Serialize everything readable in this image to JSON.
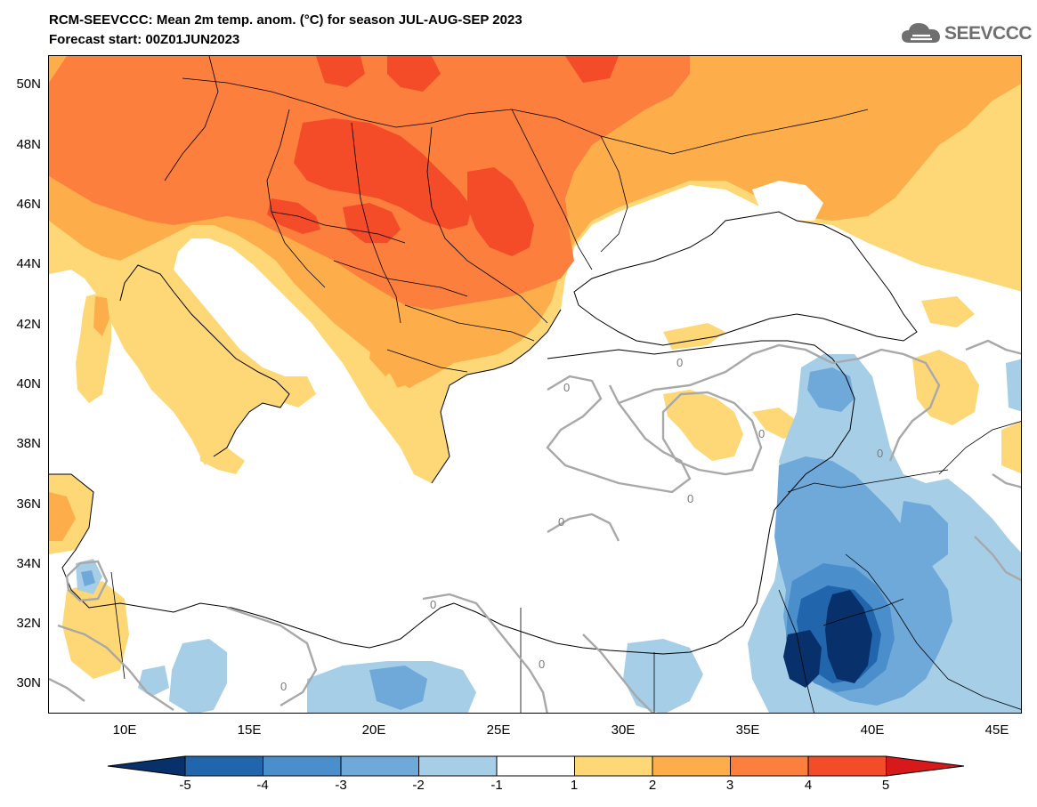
{
  "header": {
    "title": "RCM-SEEVCCC: Mean 2m temp. anom. (°C) for season JUL-AUG-SEP 2023",
    "subtitle": "Forecast start: 00Z01JUN2023"
  },
  "logo": {
    "text": "SEEVCCC",
    "icon": "cloud-icon"
  },
  "map": {
    "lon_range": [
      7,
      46
    ],
    "lat_range": [
      29,
      51
    ],
    "lat_labels": [
      "50N",
      "48N",
      "46N",
      "44N",
      "42N",
      "40N",
      "38N",
      "36N",
      "34N",
      "32N",
      "30N"
    ],
    "lon_labels": [
      "10E",
      "15E",
      "20E",
      "25E",
      "30E",
      "35E",
      "40E",
      "45E"
    ],
    "contour_label": "0"
  },
  "colorbar": {
    "labels": [
      "-5",
      "-4",
      "-3",
      "-2",
      "-1",
      "1",
      "2",
      "3",
      "4",
      "5"
    ],
    "colors": [
      "#08306b",
      "#2166ac",
      "#4a8fcb",
      "#6fa9d9",
      "#a6cfe7",
      "#ffffff",
      "#fed876",
      "#fdae4b",
      "#fc7f3d",
      "#f44b28",
      "#d7191c"
    ]
  },
  "palette": {
    "ocean": "#ffffff",
    "anom_1_2": "#fed876",
    "anom_2_3": "#fdae4b",
    "anom_3_4": "#fc7f3d",
    "anom_4_5": "#f44b28",
    "anom_m1_m2": "#a6cfe7",
    "anom_m2_m3": "#6fa9d9",
    "anom_m3_m4": "#4a8fcb",
    "anom_m4_m5": "#2166ac",
    "anom_m5": "#08306b",
    "contour": "#a8a8a8",
    "border": "#000000"
  }
}
